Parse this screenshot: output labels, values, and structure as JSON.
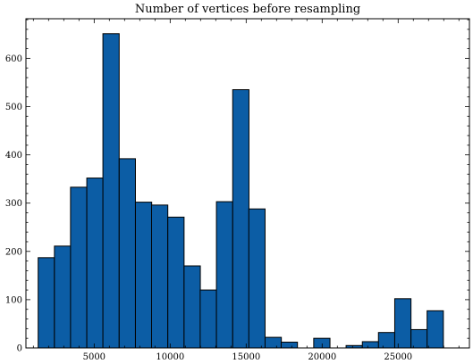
{
  "chart_data": {
    "type": "bar",
    "title": "Number of vertices before resampling",
    "xlabel": "",
    "ylabel": "",
    "xlim": [
      510,
      29690
    ],
    "ylim": [
      0,
      682
    ],
    "x_ticks": [
      5000,
      10000,
      15000,
      20000,
      25000
    ],
    "y_ticks": [
      0,
      100,
      200,
      300,
      400,
      500,
      600
    ],
    "bar_color": "#0c5da5",
    "bars": [
      {
        "center": 1850,
        "width": 1070,
        "value": 187
      },
      {
        "center": 2920,
        "width": 1070,
        "value": 211
      },
      {
        "center": 3980,
        "width": 1070,
        "value": 333
      },
      {
        "center": 5050,
        "width": 1070,
        "value": 352
      },
      {
        "center": 6110,
        "width": 1070,
        "value": 651
      },
      {
        "center": 7180,
        "width": 1070,
        "value": 392
      },
      {
        "center": 8250,
        "width": 1070,
        "value": 302
      },
      {
        "center": 9310,
        "width": 1070,
        "value": 296
      },
      {
        "center": 10380,
        "width": 1070,
        "value": 271
      },
      {
        "center": 11450,
        "width": 1070,
        "value": 170
      },
      {
        "center": 12510,
        "width": 1070,
        "value": 120
      },
      {
        "center": 13580,
        "width": 1070,
        "value": 303
      },
      {
        "center": 14650,
        "width": 1070,
        "value": 535
      },
      {
        "center": 15710,
        "width": 1070,
        "value": 288
      },
      {
        "center": 16780,
        "width": 1070,
        "value": 22
      },
      {
        "center": 17840,
        "width": 1070,
        "value": 12
      },
      {
        "center": 18910,
        "width": 1070,
        "value": 0
      },
      {
        "center": 19980,
        "width": 1070,
        "value": 20
      },
      {
        "center": 21040,
        "width": 1070,
        "value": 0
      },
      {
        "center": 22110,
        "width": 1070,
        "value": 5
      },
      {
        "center": 23180,
        "width": 1070,
        "value": 13
      },
      {
        "center": 24240,
        "width": 1070,
        "value": 32
      },
      {
        "center": 25310,
        "width": 1070,
        "value": 102
      },
      {
        "center": 26380,
        "width": 1070,
        "value": 38
      },
      {
        "center": 27440,
        "width": 1070,
        "value": 77
      }
    ]
  }
}
